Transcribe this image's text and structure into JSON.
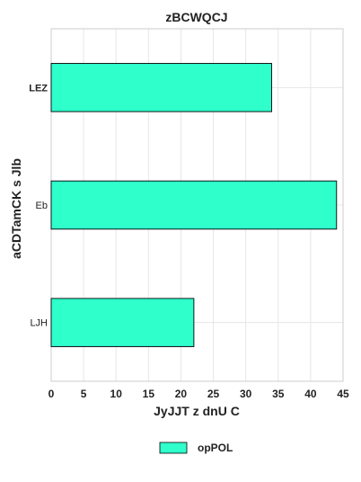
{
  "chart_data": {
    "type": "bar",
    "orientation": "horizontal",
    "title": "zBCWQCJ",
    "xlabel": "JyJJT  z dnU C",
    "ylabel": "aCDTamCK s Jlb",
    "categories": [
      "LEZ",
      "Eb",
      "LJH"
    ],
    "series": [
      {
        "name": "opPOL",
        "values": [
          34,
          44,
          22
        ],
        "color": "#2effcb"
      }
    ],
    "xlim": [
      0,
      45
    ],
    "xticks": [
      0,
      5,
      10,
      15,
      20,
      25,
      30,
      35,
      40,
      45
    ],
    "grid": true,
    "legend": "bottom-center"
  }
}
